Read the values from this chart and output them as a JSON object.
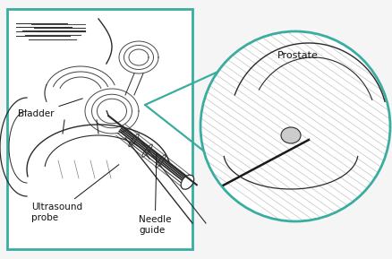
{
  "bg_color": "#f5f5f5",
  "teal_color": "#3aada0",
  "line_color": "#2a2a2a",
  "gray_color": "#888888",
  "label_color": "#111111",
  "labels": {
    "bladder": "Bladder",
    "ultrasound": "Ultrasound\nprobe",
    "needle": "Needle\nguide",
    "prostate": "Prostate"
  },
  "fig_width": 4.38,
  "fig_height": 2.89,
  "dpi": 100,
  "teal_linewidth": 1.6
}
